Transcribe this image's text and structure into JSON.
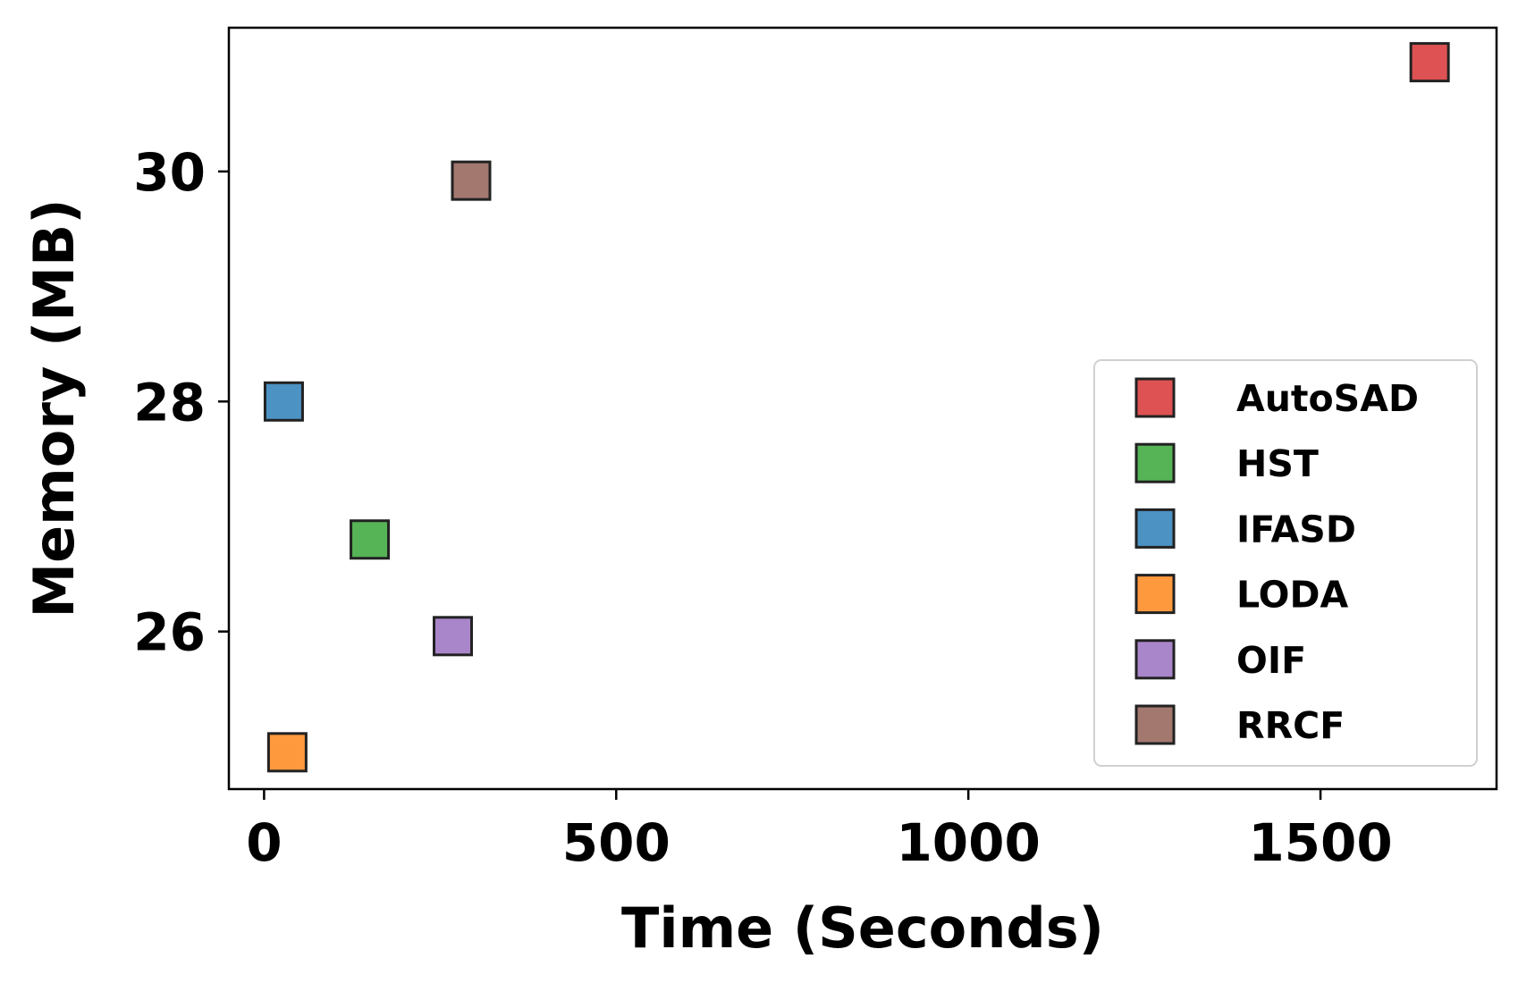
{
  "chart_data": {
    "type": "scatter",
    "xlabel": "Time (Seconds)",
    "ylabel": "Memory (MB)",
    "xlim": [
      -50,
      1750
    ],
    "ylim": [
      24.63,
      31.25
    ],
    "xticks": [
      0,
      500,
      1000,
      1500
    ],
    "yticks": [
      26,
      28,
      30
    ],
    "marker": "square",
    "legend_position": "lower right",
    "series": [
      {
        "name": "AutoSAD",
        "x": 1655,
        "y": 30.95,
        "color": "#d62728"
      },
      {
        "name": "HST",
        "x": 150,
        "y": 26.8,
        "color": "#2ca02c"
      },
      {
        "name": "IFASD",
        "x": 28,
        "y": 28.0,
        "color": "#1f77b4"
      },
      {
        "name": "LODA",
        "x": 33,
        "y": 24.95,
        "color": "#ff7f0e"
      },
      {
        "name": "OIF",
        "x": 268,
        "y": 25.96,
        "color": "#9467bd"
      },
      {
        "name": "RRCF",
        "x": 294,
        "y": 29.92,
        "color": "#8c564b"
      }
    ]
  }
}
